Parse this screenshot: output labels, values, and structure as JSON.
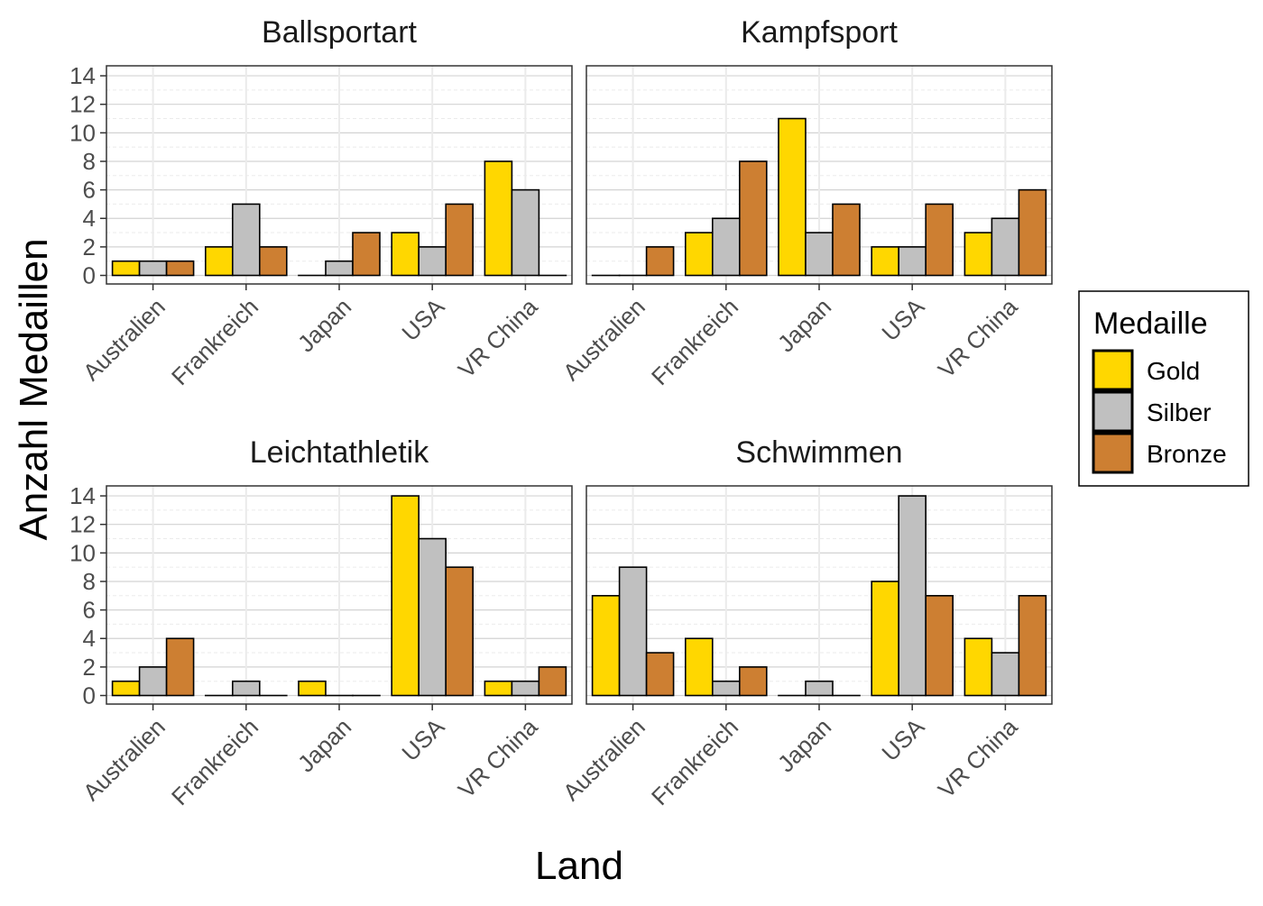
{
  "chart_data": {
    "type": "bar",
    "layout": "facet-grid-2x2",
    "x_label": "Land",
    "y_label": "Anzahl Medaillen",
    "categories": [
      "Australien",
      "Frankreich",
      "Japan",
      "USA",
      "VR China"
    ],
    "y_ticks": [
      0,
      2,
      4,
      6,
      8,
      10,
      12,
      14
    ],
    "ylim": [
      -0.6,
      14.7
    ],
    "grid": true,
    "legend": {
      "title": "Medaille",
      "position": "right",
      "items": [
        {
          "label": "Gold",
          "color": "#FFD700"
        },
        {
          "label": "Silber",
          "color": "#C0C0C0"
        },
        {
          "label": "Bronze",
          "color": "#CD7F32"
        }
      ]
    },
    "panels": [
      {
        "title": "Ballsportart",
        "series": [
          {
            "name": "Gold",
            "values": [
              1,
              2,
              0,
              3,
              8
            ]
          },
          {
            "name": "Silber",
            "values": [
              1,
              5,
              1,
              2,
              6
            ]
          },
          {
            "name": "Bronze",
            "values": [
              1,
              2,
              3,
              5,
              0
            ]
          }
        ]
      },
      {
        "title": "Kampfsport",
        "series": [
          {
            "name": "Gold",
            "values": [
              0,
              3,
              11,
              2,
              3
            ]
          },
          {
            "name": "Silber",
            "values": [
              0,
              4,
              3,
              2,
              4
            ]
          },
          {
            "name": "Bronze",
            "values": [
              2,
              8,
              5,
              5,
              6
            ]
          }
        ]
      },
      {
        "title": "Leichtathletik",
        "series": [
          {
            "name": "Gold",
            "values": [
              1,
              0,
              1,
              14,
              1
            ]
          },
          {
            "name": "Silber",
            "values": [
              2,
              1,
              0,
              11,
              1
            ]
          },
          {
            "name": "Bronze",
            "values": [
              4,
              0,
              0,
              9,
              2
            ]
          }
        ]
      },
      {
        "title": "Schwimmen",
        "series": [
          {
            "name": "Gold",
            "values": [
              7,
              4,
              0,
              8,
              4
            ]
          },
          {
            "name": "Silber",
            "values": [
              9,
              1,
              1,
              14,
              3
            ]
          },
          {
            "name": "Bronze",
            "values": [
              3,
              2,
              0,
              7,
              7
            ]
          }
        ]
      }
    ]
  }
}
